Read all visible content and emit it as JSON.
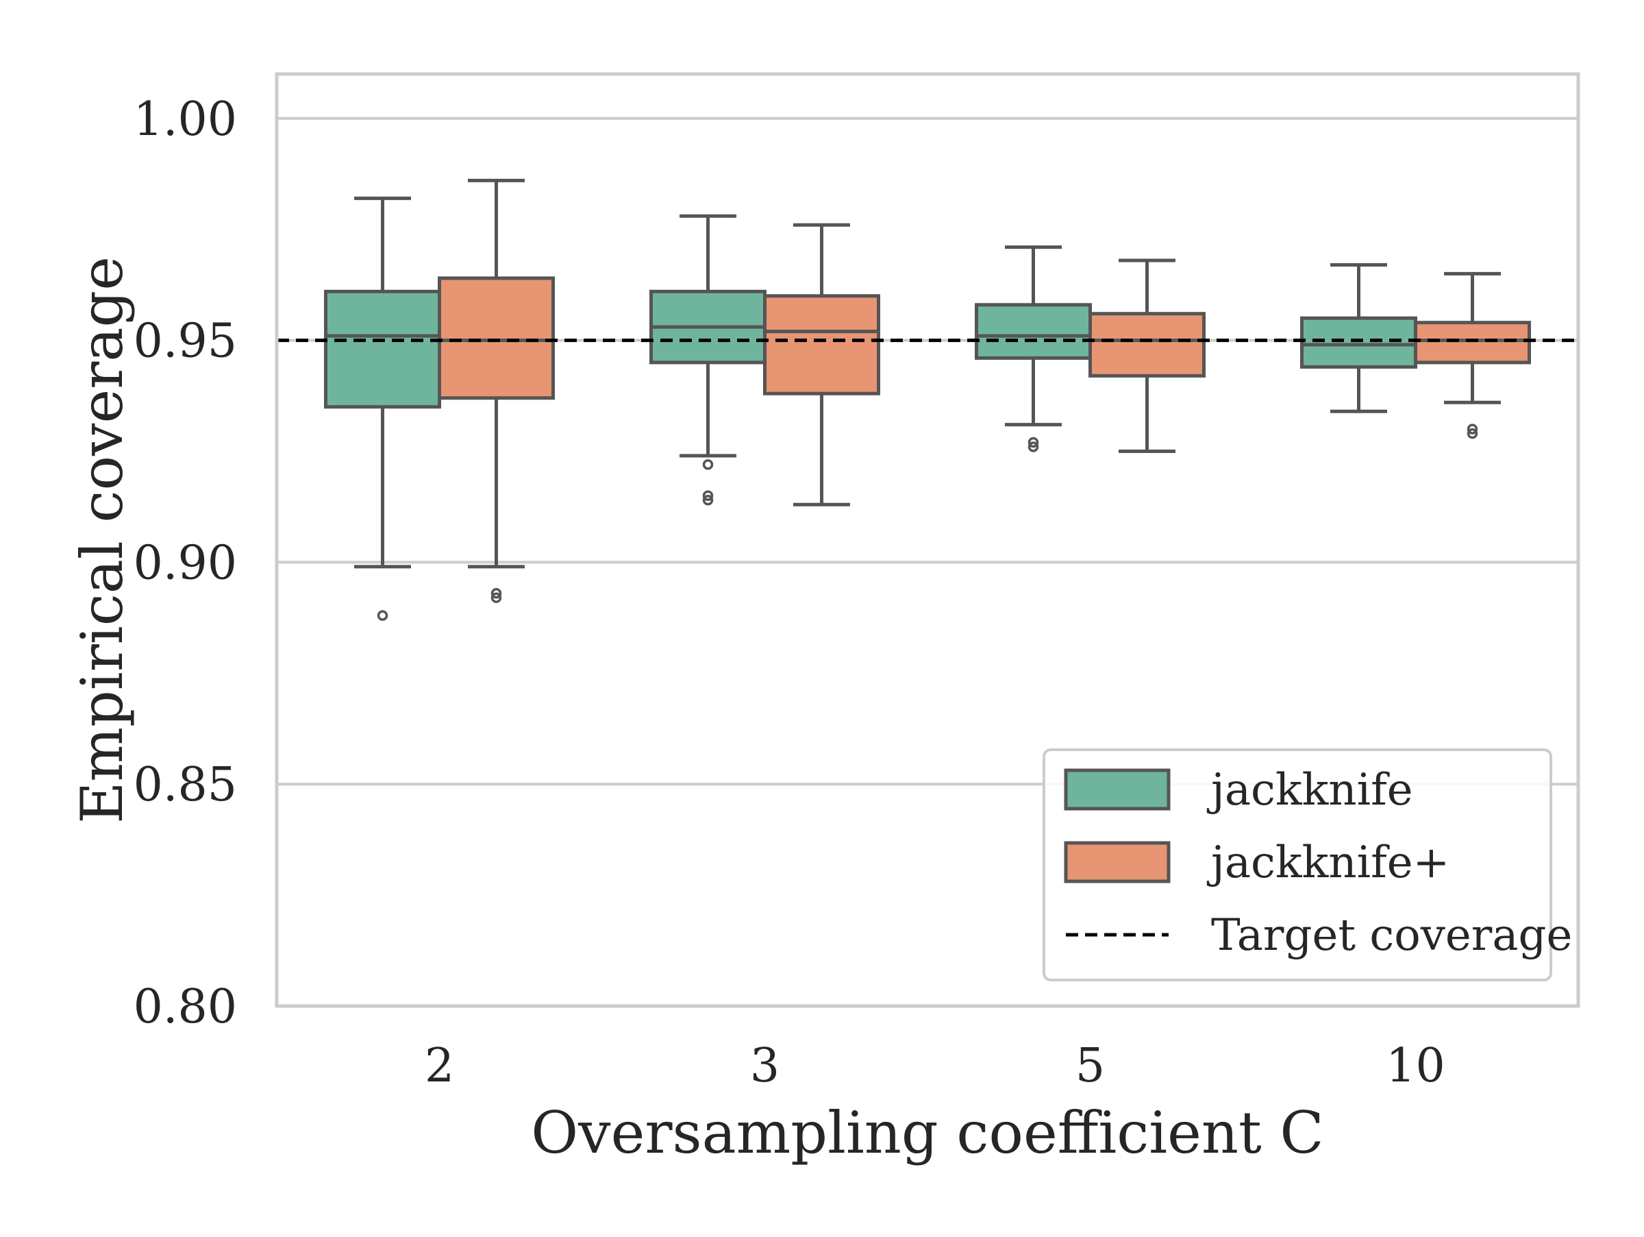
{
  "chart_data": {
    "type": "box",
    "xlabel": "Oversampling coefficient C",
    "ylabel": "Empirical coverage",
    "ylim": [
      0.8,
      1.01
    ],
    "yticks": [
      0.8,
      0.85,
      0.9,
      0.95,
      1.0
    ],
    "ytick_labels": [
      "0.80",
      "0.85",
      "0.90",
      "0.95",
      "1.00"
    ],
    "categories": [
      "2",
      "3",
      "5",
      "10"
    ],
    "grid": "horizontal",
    "legend_position": "lower-right",
    "reference_line": {
      "name": "Target coverage",
      "y": 0.95,
      "style": "dashed",
      "color": "#000000"
    },
    "series": [
      {
        "name": "jackknife",
        "color": "#6fb59d",
        "boxes": [
          {
            "q1": 0.935,
            "median": 0.951,
            "q3": 0.961,
            "whisker_low": 0.899,
            "whisker_high": 0.982,
            "outliers": [
              0.888
            ]
          },
          {
            "q1": 0.945,
            "median": 0.953,
            "q3": 0.961,
            "whisker_low": 0.924,
            "whisker_high": 0.978,
            "outliers": [
              0.922,
              0.915,
              0.914
            ]
          },
          {
            "q1": 0.946,
            "median": 0.951,
            "q3": 0.958,
            "whisker_low": 0.931,
            "whisker_high": 0.971,
            "outliers": [
              0.927,
              0.926
            ]
          },
          {
            "q1": 0.944,
            "median": 0.949,
            "q3": 0.955,
            "whisker_low": 0.934,
            "whisker_high": 0.967,
            "outliers": []
          }
        ]
      },
      {
        "name": "jackknife+",
        "color": "#e79573",
        "boxes": [
          {
            "q1": 0.937,
            "median": 0.95,
            "q3": 0.964,
            "whisker_low": 0.899,
            "whisker_high": 0.986,
            "outliers": [
              0.893,
              0.892
            ]
          },
          {
            "q1": 0.938,
            "median": 0.952,
            "q3": 0.96,
            "whisker_low": 0.913,
            "whisker_high": 0.976,
            "outliers": []
          },
          {
            "q1": 0.942,
            "median": 0.95,
            "q3": 0.956,
            "whisker_low": 0.925,
            "whisker_high": 0.968,
            "outliers": []
          },
          {
            "q1": 0.945,
            "median": 0.95,
            "q3": 0.954,
            "whisker_low": 0.936,
            "whisker_high": 0.965,
            "outliers": [
              0.93,
              0.929
            ]
          }
        ]
      }
    ]
  }
}
